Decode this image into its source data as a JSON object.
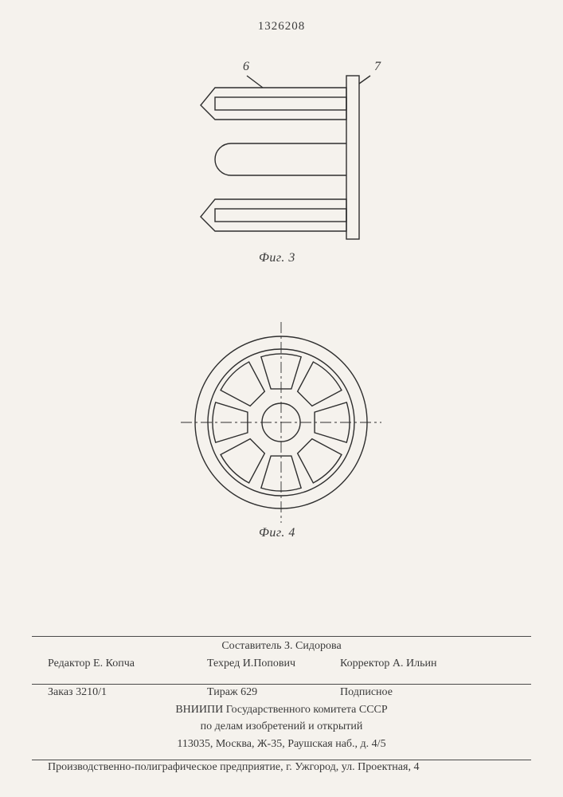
{
  "page_number": "1326208",
  "fig3": {
    "label": "Фиг. 3",
    "callout_6": "6",
    "callout_7": "7",
    "stroke": "#2e2e2e",
    "stroke_width": 1.4
  },
  "fig4": {
    "label": "Фиг. 4",
    "stroke": "#2e2e2e",
    "stroke_width": 1.4,
    "outer_r": 108,
    "inner_r": 92,
    "hub_r": 24,
    "segment_count": 8,
    "segment_inner_r": 44,
    "segment_outer_r": 86,
    "segment_half_angle_deg": 17
  },
  "credits": {
    "compiler_label": "Составитель",
    "compiler_name": "З. Сидорова",
    "editor_label": "Редактор",
    "editor_name": "Е. Копча",
    "techred_label": "Техред",
    "techred_name": "И.Попович",
    "corrector_label": "Корректор",
    "corrector_name": "А. Ильин",
    "order_label": "Заказ",
    "order_number": "3210/1",
    "tirazh_label": "Тираж",
    "tirazh_value": "629",
    "signed": "Подписное",
    "vniipi_line1": "ВНИИПИ Государственного комитета СССР",
    "vniipi_line2": "по делам изобретений и открытий",
    "vniipi_line3": "113035, Москва, Ж-35, Раушская наб., д. 4/5"
  },
  "footer": "Производственно-полиграфическое предприятие, г. Ужгород, ул. Проектная, 4"
}
